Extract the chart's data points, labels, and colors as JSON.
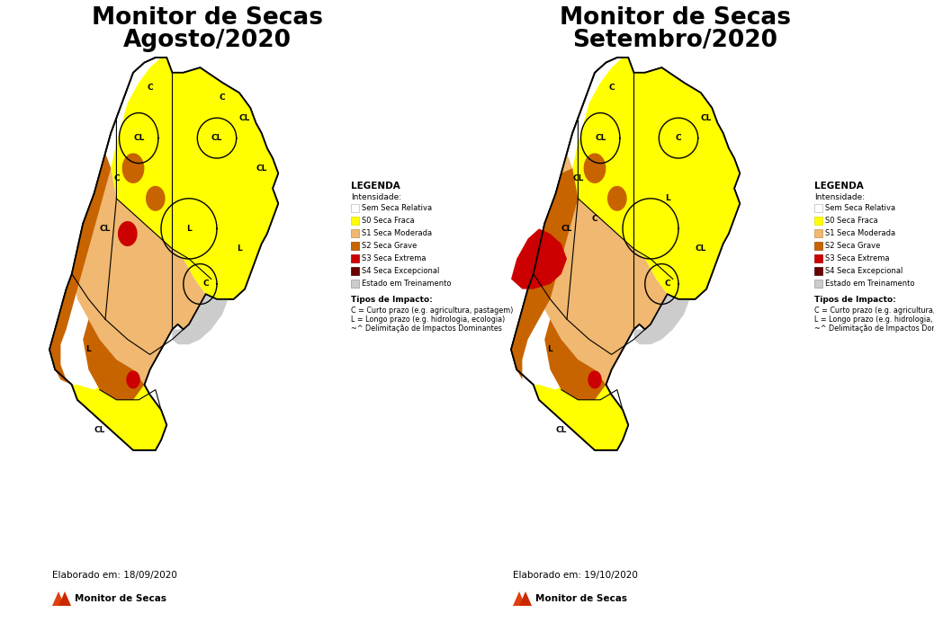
{
  "title_left_line1": "Monitor de Secas",
  "title_left_line2": "Agosto/2020",
  "title_right_line1": "Monitor de Secas",
  "title_right_line2": "Setembro/2020",
  "elaborado_left": "Elaborado em: 18/09/2020",
  "elaborado_right": "Elaborado em: 19/10/2020",
  "monitor_label": "Monitor de Secas",
  "background_color": "#ffffff",
  "legend_title": "LEGENDA",
  "legend_intensidade": "Intensidade:",
  "legend_items": [
    {
      "color": "#ffffff",
      "label": "Sem Seca Relativa",
      "edgecolor": "#bbbbbb"
    },
    {
      "color": "#ffff00",
      "label": "S0 Seca Fraca",
      "edgecolor": "#dddd00"
    },
    {
      "color": "#f0b870",
      "label": "S1 Seca Moderada",
      "edgecolor": "#c09050"
    },
    {
      "color": "#c86400",
      "label": "S2 Seca Grave",
      "edgecolor": "#904800"
    },
    {
      "color": "#cc0000",
      "label": "S3 Seca Extrema",
      "edgecolor": "#990000"
    },
    {
      "color": "#6b0000",
      "label": "S4 Seca Excepcional",
      "edgecolor": "#440000"
    },
    {
      "color": "#cccccc",
      "label": "Estado em Treinamento",
      "edgecolor": "#999999"
    }
  ],
  "tipos_impacto_title": "Tipos de Impacto:",
  "tipos_impacto_lines": [
    "C = Curto prazo (e.g. agricultura, pastagem)",
    "L = Longo prazo (e.g. hidrologia, ecologia)",
    "~^ Delimitação de Impactos Dominantes"
  ],
  "map_colors": {
    "no_drought": "#ffffff",
    "s0": "#ffff00",
    "s1": "#f0b870",
    "s2": "#c86400",
    "s3": "#cc0000",
    "s4": "#6b0000",
    "training": "#cccccc"
  }
}
